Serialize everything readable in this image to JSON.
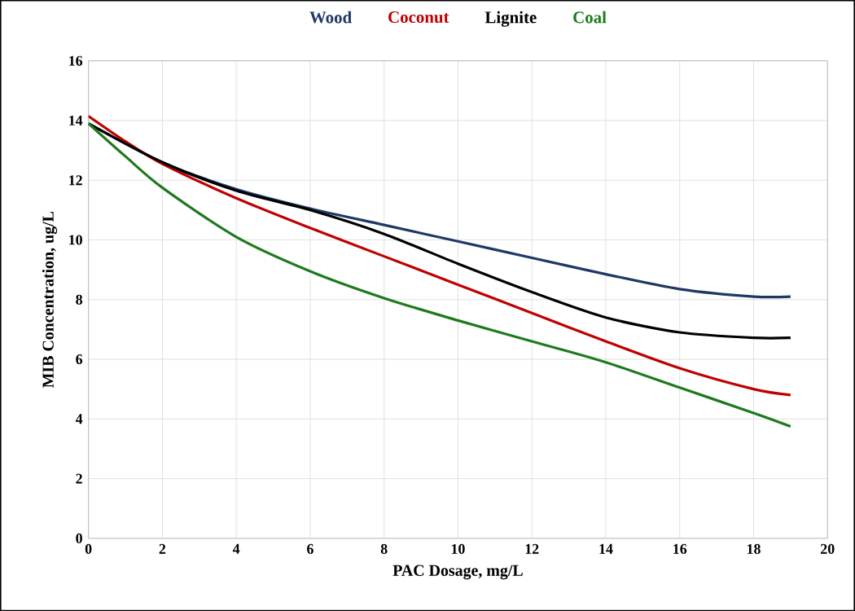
{
  "chart_data": {
    "type": "line",
    "xlabel": "PAC Dosage, mg/L",
    "ylabel": "MIB Concentration, ug/L",
    "xlim": [
      0,
      20
    ],
    "xticks": [
      0,
      2,
      4,
      6,
      8,
      10,
      12,
      14,
      16,
      18,
      20
    ],
    "ylim": [
      0,
      16
    ],
    "yticks": [
      0,
      2,
      4,
      6,
      8,
      10,
      12,
      14,
      16
    ],
    "grid": true,
    "legend": "top",
    "marker": "none",
    "line_style": "solid",
    "series": [
      {
        "name": "Wood",
        "color": "#203864",
        "x": [
          0,
          2,
          4,
          6,
          8,
          10,
          12,
          14,
          16,
          18,
          19
        ],
        "values": [
          13.9,
          12.6,
          11.7,
          11.05,
          10.5,
          9.95,
          9.4,
          8.85,
          8.35,
          8.1,
          8.1
        ]
      },
      {
        "name": "Coconut",
        "color": "#c00000",
        "x": [
          0,
          1,
          2,
          4,
          6,
          8,
          10,
          12,
          14,
          16,
          18,
          19
        ],
        "values": [
          14.15,
          13.3,
          12.55,
          11.4,
          10.4,
          9.45,
          8.5,
          7.55,
          6.6,
          5.7,
          5.0,
          4.8
        ]
      },
      {
        "name": "Lignite",
        "color": "#000000",
        "x": [
          0,
          2,
          4,
          6,
          8,
          10,
          12,
          14,
          16,
          18,
          19
        ],
        "values": [
          13.9,
          12.6,
          11.65,
          11.0,
          10.2,
          9.2,
          8.25,
          7.4,
          6.9,
          6.72,
          6.72
        ]
      },
      {
        "name": "Coal",
        "color": "#1e7a1e",
        "x": [
          0,
          1,
          2,
          4,
          6,
          8,
          10,
          12,
          14,
          16,
          18,
          19
        ],
        "values": [
          13.9,
          12.8,
          11.75,
          10.1,
          8.95,
          8.05,
          7.3,
          6.6,
          5.9,
          5.05,
          4.2,
          3.75
        ]
      }
    ]
  }
}
